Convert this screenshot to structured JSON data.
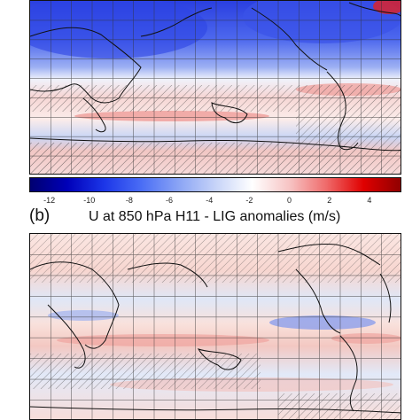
{
  "colorbar": {
    "ticks": [
      "-12",
      "-10",
      "-8",
      "-6",
      "-4",
      "-2",
      "0",
      "2",
      "4"
    ],
    "min": -13,
    "max": 5.6,
    "stops": [
      "#000070",
      "#0000b8",
      "#1c36e8",
      "#4a6df5",
      "#8aa4f5",
      "#c6d3f8",
      "#ffffff",
      "#f7c4c4",
      "#ef6a6a",
      "#e00000",
      "#900000"
    ]
  },
  "panel_b": {
    "label": "(b)",
    "title": "U at 850 hPa H11 - LIG  anomalies (m/s)"
  },
  "palette": {
    "blue_strong": "#3047e0",
    "blue_mid": "#7d95ee",
    "blue_light": "#c8d4f5",
    "red_light": "#f7d1cf",
    "red_mid": "#ef9c98",
    "coast": "#111111",
    "grid": "#333333"
  }
}
